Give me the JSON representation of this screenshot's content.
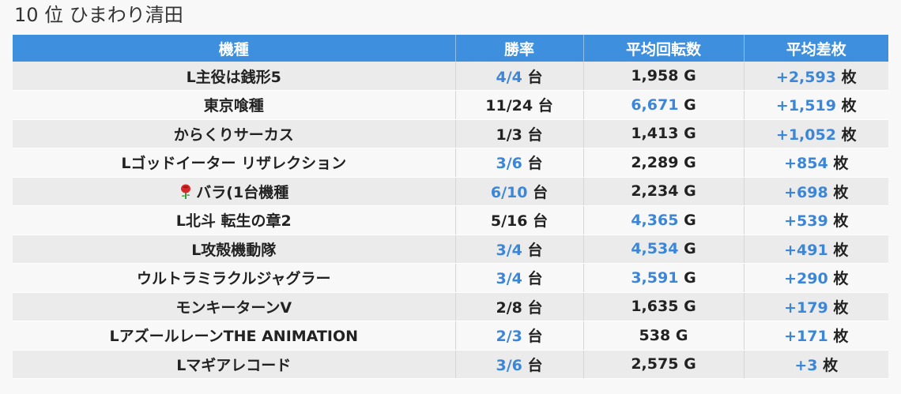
{
  "page": {
    "title": "10 位 ひまわり清田"
  },
  "colors": {
    "header_bg": "#3e8fdd",
    "highlight": "#3b86d8",
    "row_odd": "#ebebeb",
    "row_even": "#f8f8f8"
  },
  "table": {
    "headers": [
      "機種",
      "勝率",
      "平均回転数",
      "平均差枚"
    ],
    "rows": [
      {
        "machine": "L主役は銭形5",
        "win_rate": "4/4",
        "win_rate_unit": "台",
        "win_hl": true,
        "spins": "1,958",
        "spins_unit": "G",
        "spins_hl": false,
        "diff": "+2,593",
        "diff_unit": "枚"
      },
      {
        "machine": "東京喰種",
        "win_rate": "11/24",
        "win_rate_unit": "台",
        "win_hl": false,
        "spins": "6,671",
        "spins_unit": "G",
        "spins_hl": true,
        "diff": "+1,519",
        "diff_unit": "枚"
      },
      {
        "machine": "からくりサーカス",
        "win_rate": "1/3",
        "win_rate_unit": "台",
        "win_hl": false,
        "spins": "1,413",
        "spins_unit": "G",
        "spins_hl": false,
        "diff": "+1,052",
        "diff_unit": "枚"
      },
      {
        "machine": "Lゴッドイーター リザレクション",
        "win_rate": "3/6",
        "win_rate_unit": "台",
        "win_hl": true,
        "spins": "2,289",
        "spins_unit": "G",
        "spins_hl": false,
        "diff": "+854",
        "diff_unit": "枚"
      },
      {
        "machine": "バラ(1台機種",
        "machine_icon": "rose-icon",
        "win_rate": "6/10",
        "win_rate_unit": "台",
        "win_hl": true,
        "spins": "2,234",
        "spins_unit": "G",
        "spins_hl": false,
        "diff": "+698",
        "diff_unit": "枚"
      },
      {
        "machine": "L北斗 転生の章2",
        "win_rate": "5/16",
        "win_rate_unit": "台",
        "win_hl": false,
        "spins": "4,365",
        "spins_unit": "G",
        "spins_hl": true,
        "diff": "+539",
        "diff_unit": "枚"
      },
      {
        "machine": "L攻殻機動隊",
        "win_rate": "3/4",
        "win_rate_unit": "台",
        "win_hl": true,
        "spins": "4,534",
        "spins_unit": "G",
        "spins_hl": true,
        "diff": "+491",
        "diff_unit": "枚"
      },
      {
        "machine": "ウルトラミラクルジャグラー",
        "win_rate": "3/4",
        "win_rate_unit": "台",
        "win_hl": true,
        "spins": "3,591",
        "spins_unit": "G",
        "spins_hl": true,
        "diff": "+290",
        "diff_unit": "枚"
      },
      {
        "machine": "モンキーターンV",
        "win_rate": "2/8",
        "win_rate_unit": "台",
        "win_hl": false,
        "spins": "1,635",
        "spins_unit": "G",
        "spins_hl": false,
        "diff": "+179",
        "diff_unit": "枚"
      },
      {
        "machine": "LアズールレーンTHE ANIMATION",
        "win_rate": "2/3",
        "win_rate_unit": "台",
        "win_hl": true,
        "spins": "538",
        "spins_unit": "G",
        "spins_hl": false,
        "diff": "+171",
        "diff_unit": "枚"
      },
      {
        "machine": "Lマギアレコード",
        "win_rate": "3/6",
        "win_rate_unit": "台",
        "win_hl": true,
        "spins": "2,575",
        "spins_unit": "G",
        "spins_hl": false,
        "diff": "+3",
        "diff_unit": "枚"
      }
    ]
  }
}
